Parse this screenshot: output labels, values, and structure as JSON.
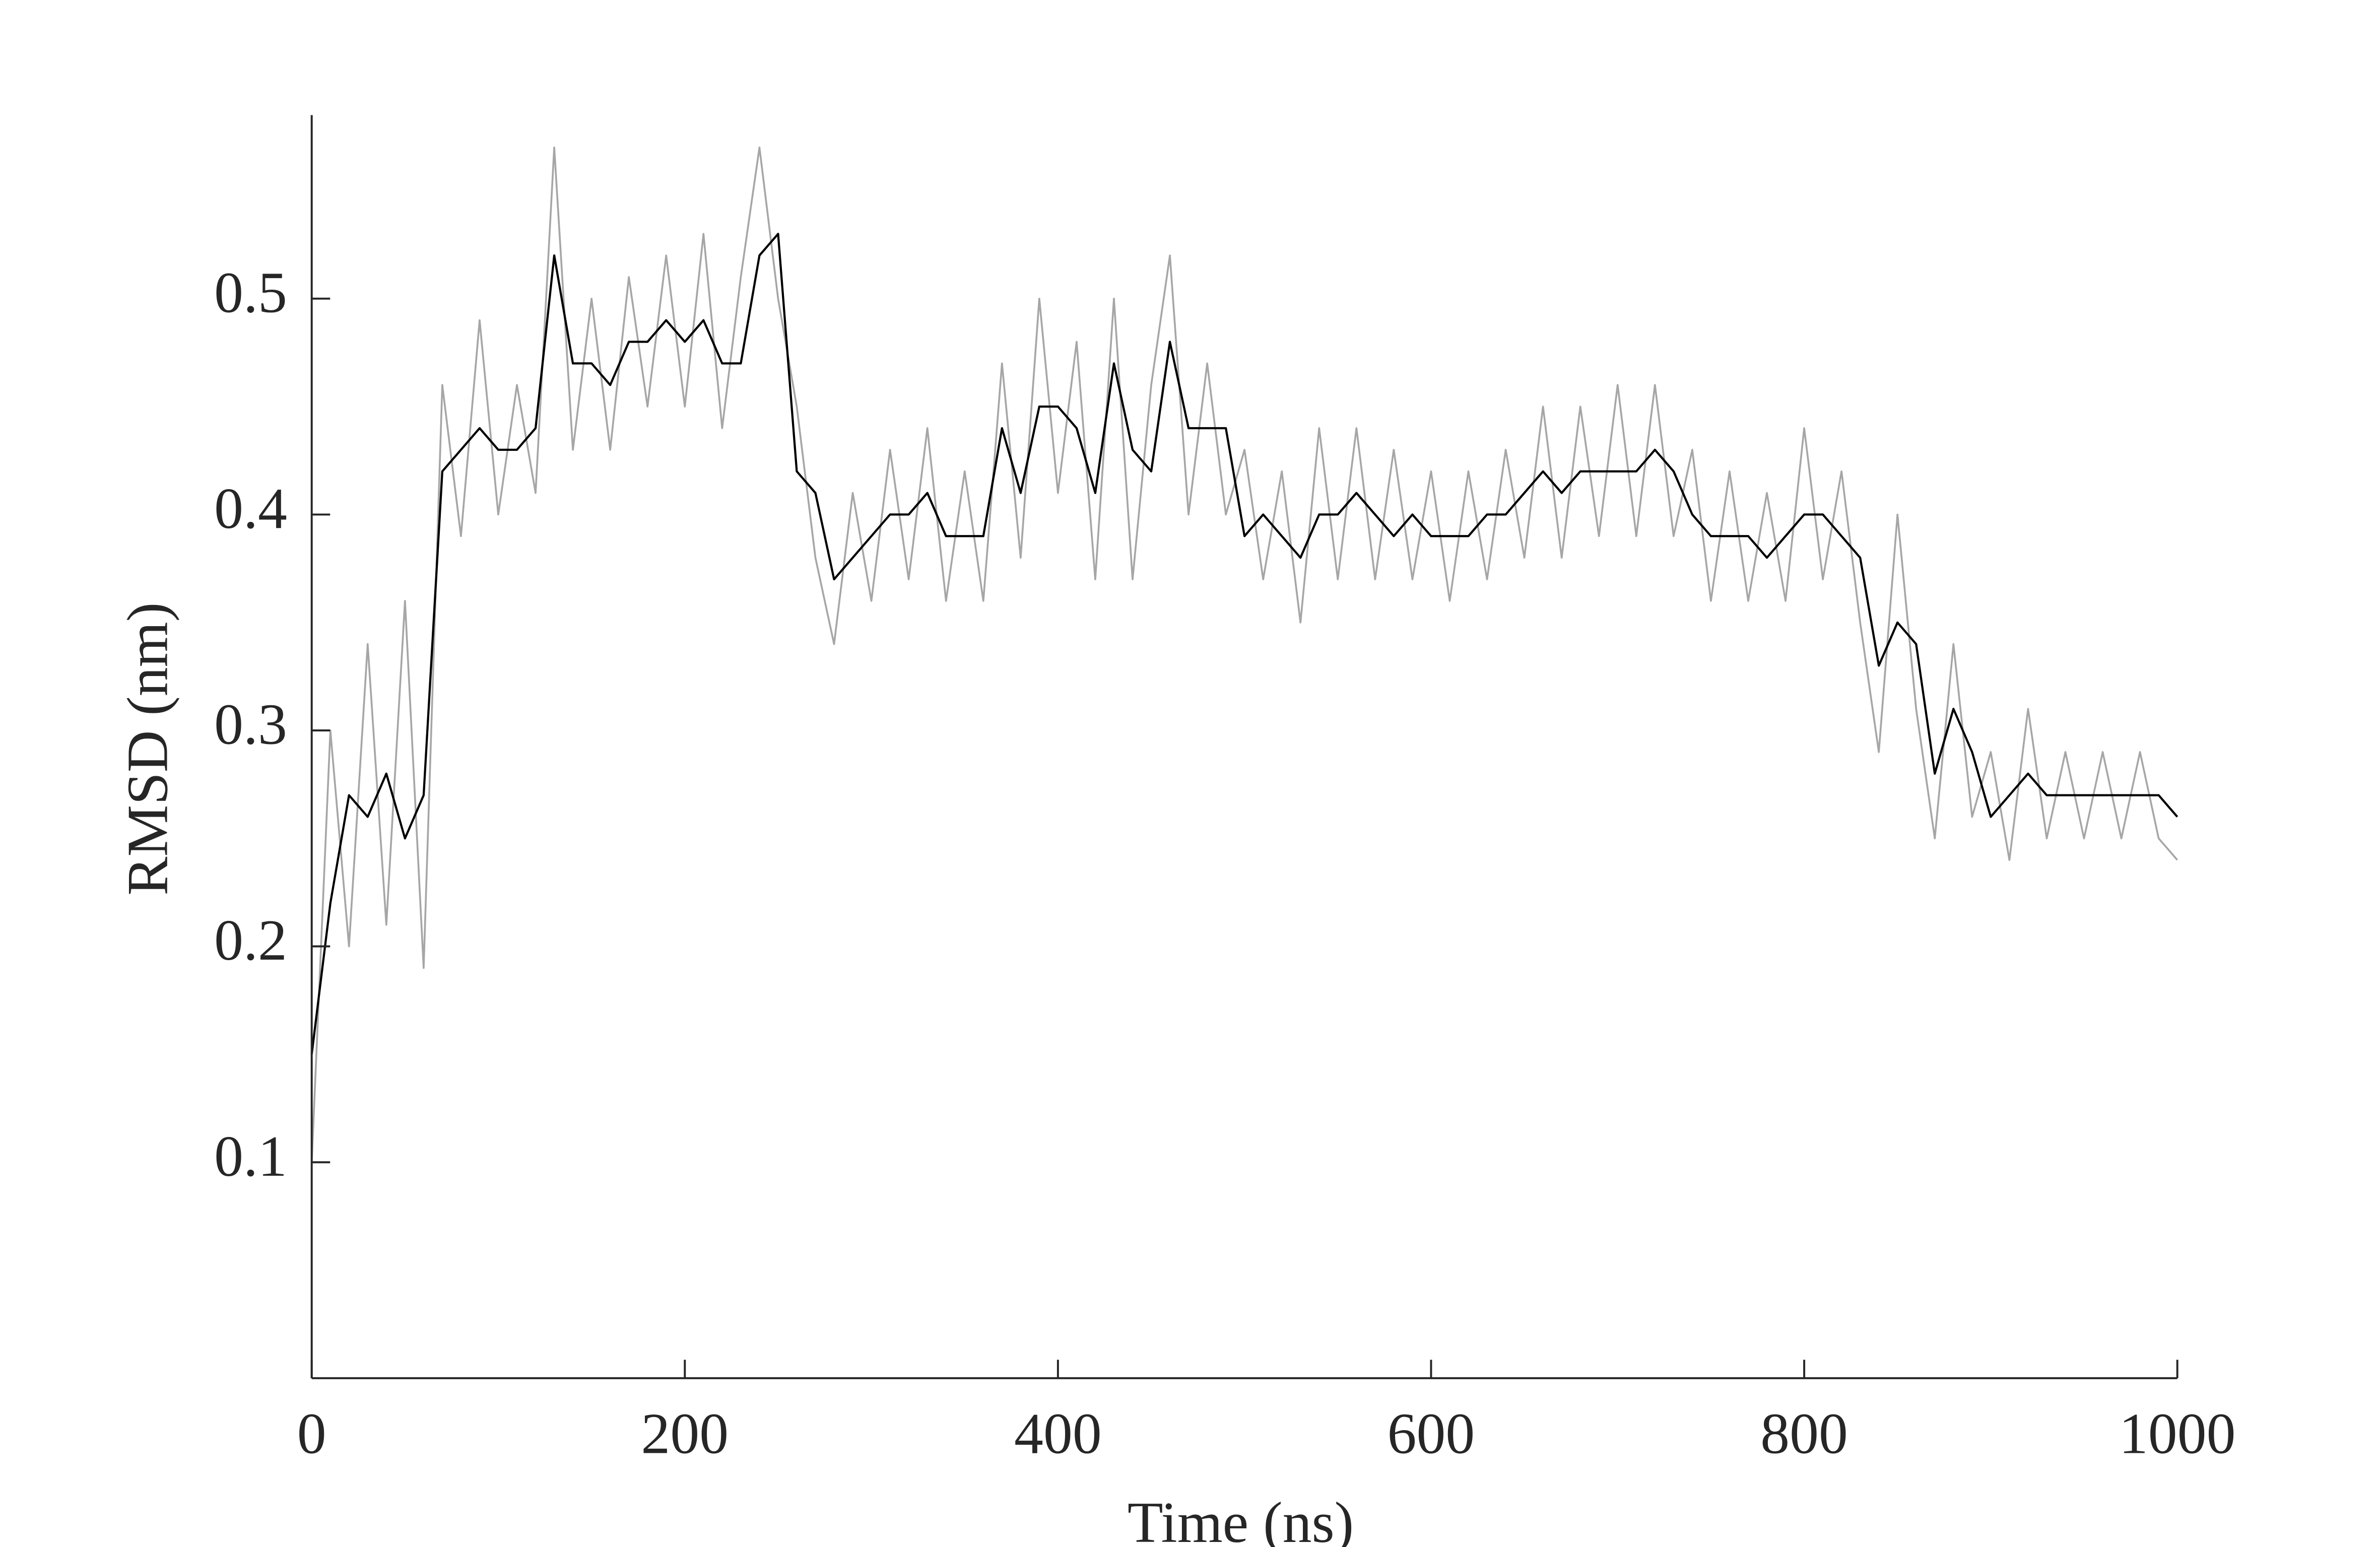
{
  "chart_data": {
    "type": "line",
    "x_label": "Time (ns)",
    "y_label": "RMSD (nm)",
    "x": [
      0,
      10,
      20,
      30,
      40,
      50,
      60,
      70,
      80,
      90,
      100,
      110,
      120,
      130,
      140,
      150,
      160,
      170,
      180,
      190,
      200,
      210,
      220,
      230,
      240,
      250,
      260,
      270,
      280,
      290,
      300,
      310,
      320,
      330,
      340,
      350,
      360,
      370,
      380,
      390,
      400,
      410,
      420,
      430,
      440,
      450,
      460,
      470,
      480,
      490,
      500,
      510,
      520,
      530,
      540,
      550,
      560,
      570,
      580,
      590,
      600,
      610,
      620,
      630,
      640,
      650,
      660,
      670,
      680,
      690,
      700,
      710,
      720,
      730,
      740,
      750,
      760,
      770,
      780,
      790,
      800,
      810,
      820,
      830,
      840,
      850,
      860,
      870,
      880,
      890,
      900,
      910,
      920,
      930,
      940,
      950,
      960,
      970,
      980,
      990,
      1000
    ],
    "series": [
      {
        "color": "#a6a6a6",
        "values": [
          0.1,
          0.3,
          0.2,
          0.34,
          0.21,
          0.36,
          0.19,
          0.46,
          0.39,
          0.49,
          0.4,
          0.46,
          0.41,
          0.57,
          0.43,
          0.5,
          0.43,
          0.51,
          0.45,
          0.52,
          0.45,
          0.53,
          0.44,
          0.51,
          0.57,
          0.5,
          0.45,
          0.38,
          0.34,
          0.41,
          0.36,
          0.43,
          0.37,
          0.44,
          0.36,
          0.42,
          0.36,
          0.47,
          0.38,
          0.5,
          0.41,
          0.48,
          0.37,
          0.5,
          0.37,
          0.46,
          0.52,
          0.4,
          0.47,
          0.4,
          0.43,
          0.37,
          0.42,
          0.35,
          0.44,
          0.37,
          0.44,
          0.37,
          0.43,
          0.37,
          0.42,
          0.36,
          0.42,
          0.37,
          0.43,
          0.38,
          0.45,
          0.38,
          0.45,
          0.39,
          0.46,
          0.39,
          0.46,
          0.39,
          0.43,
          0.36,
          0.42,
          0.36,
          0.41,
          0.36,
          0.44,
          0.37,
          0.42,
          0.35,
          0.29,
          0.4,
          0.31,
          0.25,
          0.34,
          0.26,
          0.29,
          0.24,
          0.31,
          0.25,
          0.29,
          0.25,
          0.29,
          0.25,
          0.29,
          0.25,
          0.24
        ]
      },
      {
        "color": "#000000",
        "values": [
          0.15,
          0.22,
          0.27,
          0.26,
          0.28,
          0.25,
          0.27,
          0.42,
          0.43,
          0.44,
          0.43,
          0.43,
          0.44,
          0.52,
          0.47,
          0.47,
          0.46,
          0.48,
          0.48,
          0.49,
          0.48,
          0.49,
          0.47,
          0.47,
          0.52,
          0.53,
          0.42,
          0.41,
          0.37,
          0.38,
          0.39,
          0.4,
          0.4,
          0.41,
          0.39,
          0.39,
          0.39,
          0.44,
          0.41,
          0.45,
          0.45,
          0.44,
          0.41,
          0.47,
          0.43,
          0.42,
          0.48,
          0.44,
          0.44,
          0.44,
          0.39,
          0.4,
          0.39,
          0.38,
          0.4,
          0.4,
          0.41,
          0.4,
          0.39,
          0.4,
          0.39,
          0.39,
          0.39,
          0.4,
          0.4,
          0.41,
          0.42,
          0.41,
          0.42,
          0.42,
          0.42,
          0.42,
          0.43,
          0.42,
          0.4,
          0.39,
          0.39,
          0.39,
          0.38,
          0.39,
          0.4,
          0.4,
          0.39,
          0.38,
          0.33,
          0.35,
          0.34,
          0.28,
          0.31,
          0.29,
          0.26,
          0.27,
          0.28,
          0.27,
          0.27,
          0.27,
          0.27,
          0.27,
          0.27,
          0.27,
          0.26
        ]
      }
    ],
    "xlim": [
      0,
      1000
    ],
    "xticks": [
      0,
      200,
      400,
      600,
      800,
      1000
    ],
    "ylim": [
      0,
      0.585
    ],
    "yticks": [
      0.1,
      0.2,
      0.3,
      0.4,
      0.5
    ],
    "grid": false
  }
}
